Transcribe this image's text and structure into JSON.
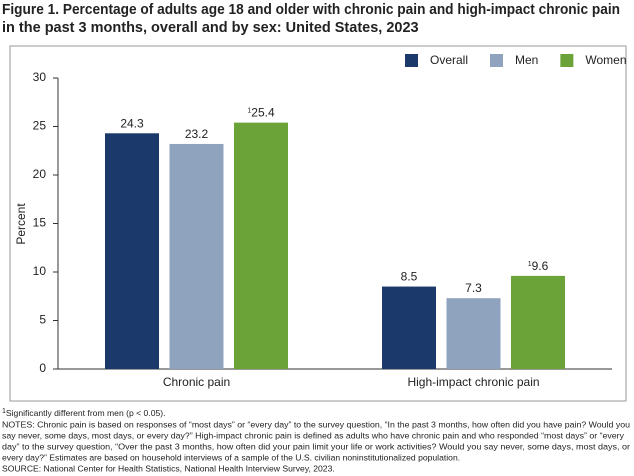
{
  "chart_data": {
    "type": "bar",
    "title_lines": [
      "Figure 1. Percentage of adults age 18 and older with chronic pain and high-impact chronic pain",
      "in the past 3 months, overall and by sex: United States, 2023"
    ],
    "ylabel": "Percent",
    "categories": [
      "Chronic pain",
      "High-impact chronic pain"
    ],
    "series": [
      {
        "name": "Overall",
        "color": "#1b3a6b",
        "values": [
          24.3,
          8.5
        ]
      },
      {
        "name": "Men",
        "color": "#8fa3bf",
        "values": [
          23.2,
          7.3
        ]
      },
      {
        "name": "Women",
        "color": "#6ca338",
        "values": [
          25.4,
          9.6
        ],
        "value_notes": [
          "1",
          "1"
        ]
      }
    ],
    "ylim": [
      0,
      30
    ],
    "yticks": [
      0,
      5,
      10,
      15,
      20,
      25,
      30
    ],
    "grid": false,
    "legend": "top-right",
    "footnote_marker": "1",
    "footnote": "Significantly different from men (p < 0.05).",
    "notes": [
      "NOTES: Chronic pain is based on responses of “most days” or “every day” to the survey question, “In the past 3 months, how often did you have pain? Would you",
      "say never, some days, most days, or every day?” High-impact chronic pain is defined as adults who have chronic pain and who responded “most days” or “every",
      "day” to the survey question, “Over the past 3 months, how often did your pain limit your life or work activities? Would you say never, some days, most days, or",
      "every day?” Estimates are based on household interviews of a sample of the U.S. civilian noninstitutionalized population."
    ],
    "source": "SOURCE: National Center for Health Statistics, National Health Interview Survey, 2023."
  }
}
